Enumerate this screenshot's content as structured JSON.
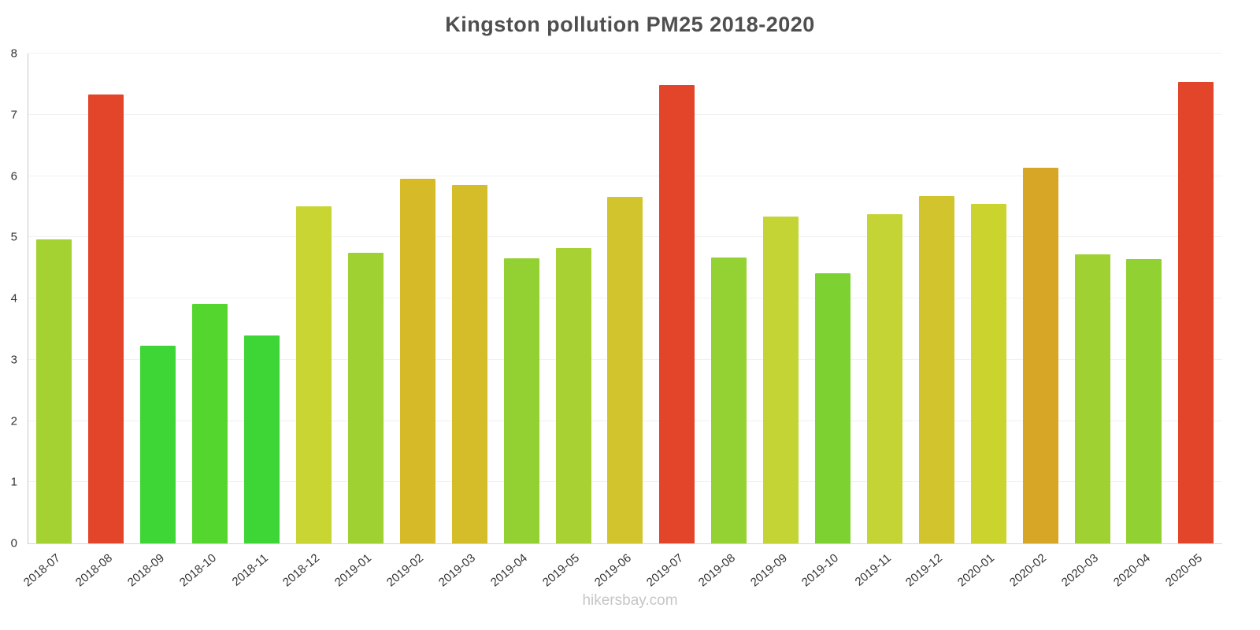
{
  "title": "Kingston pollution PM25 2018-2020",
  "watermark": "hikersbay.com",
  "chart_data": {
    "type": "bar",
    "title": "Kingston pollution PM25 2018-2020",
    "xlabel": "",
    "ylabel": "",
    "ylim": [
      0,
      8
    ],
    "ytick_step": 1,
    "grid": true,
    "legend": false,
    "categories": [
      "2018-07",
      "2018-08",
      "2018-09",
      "2018-10",
      "2018-11",
      "2018-12",
      "2019-01",
      "2019-02",
      "2019-03",
      "2019-04",
      "2019-05",
      "2019-06",
      "2019-07",
      "2019-08",
      "2019-09",
      "2019-10",
      "2019-11",
      "2019-12",
      "2020-01",
      "2020-02",
      "2020-03",
      "2020-04",
      "2020-05"
    ],
    "values": [
      4.97,
      7.33,
      3.23,
      3.91,
      3.4,
      5.51,
      4.75,
      5.96,
      5.85,
      4.65,
      4.82,
      5.66,
      7.49,
      4.67,
      5.34,
      4.41,
      5.37,
      5.67,
      5.54,
      6.14,
      4.72,
      4.64,
      7.54
    ],
    "colors": [
      "#a5d233",
      "#e2452a",
      "#3ed636",
      "#55d62f",
      "#3ed636",
      "#c9d532",
      "#a0d133",
      "#d6ba28",
      "#d5bc29",
      "#93d132",
      "#a8d233",
      "#d2c42c",
      "#e2452a",
      "#94d132",
      "#c3d434",
      "#7dd231",
      "#c3d434",
      "#d2c42c",
      "#cbd32f",
      "#d8a627",
      "#a0d133",
      "#92d132",
      "#e2452a"
    ]
  }
}
